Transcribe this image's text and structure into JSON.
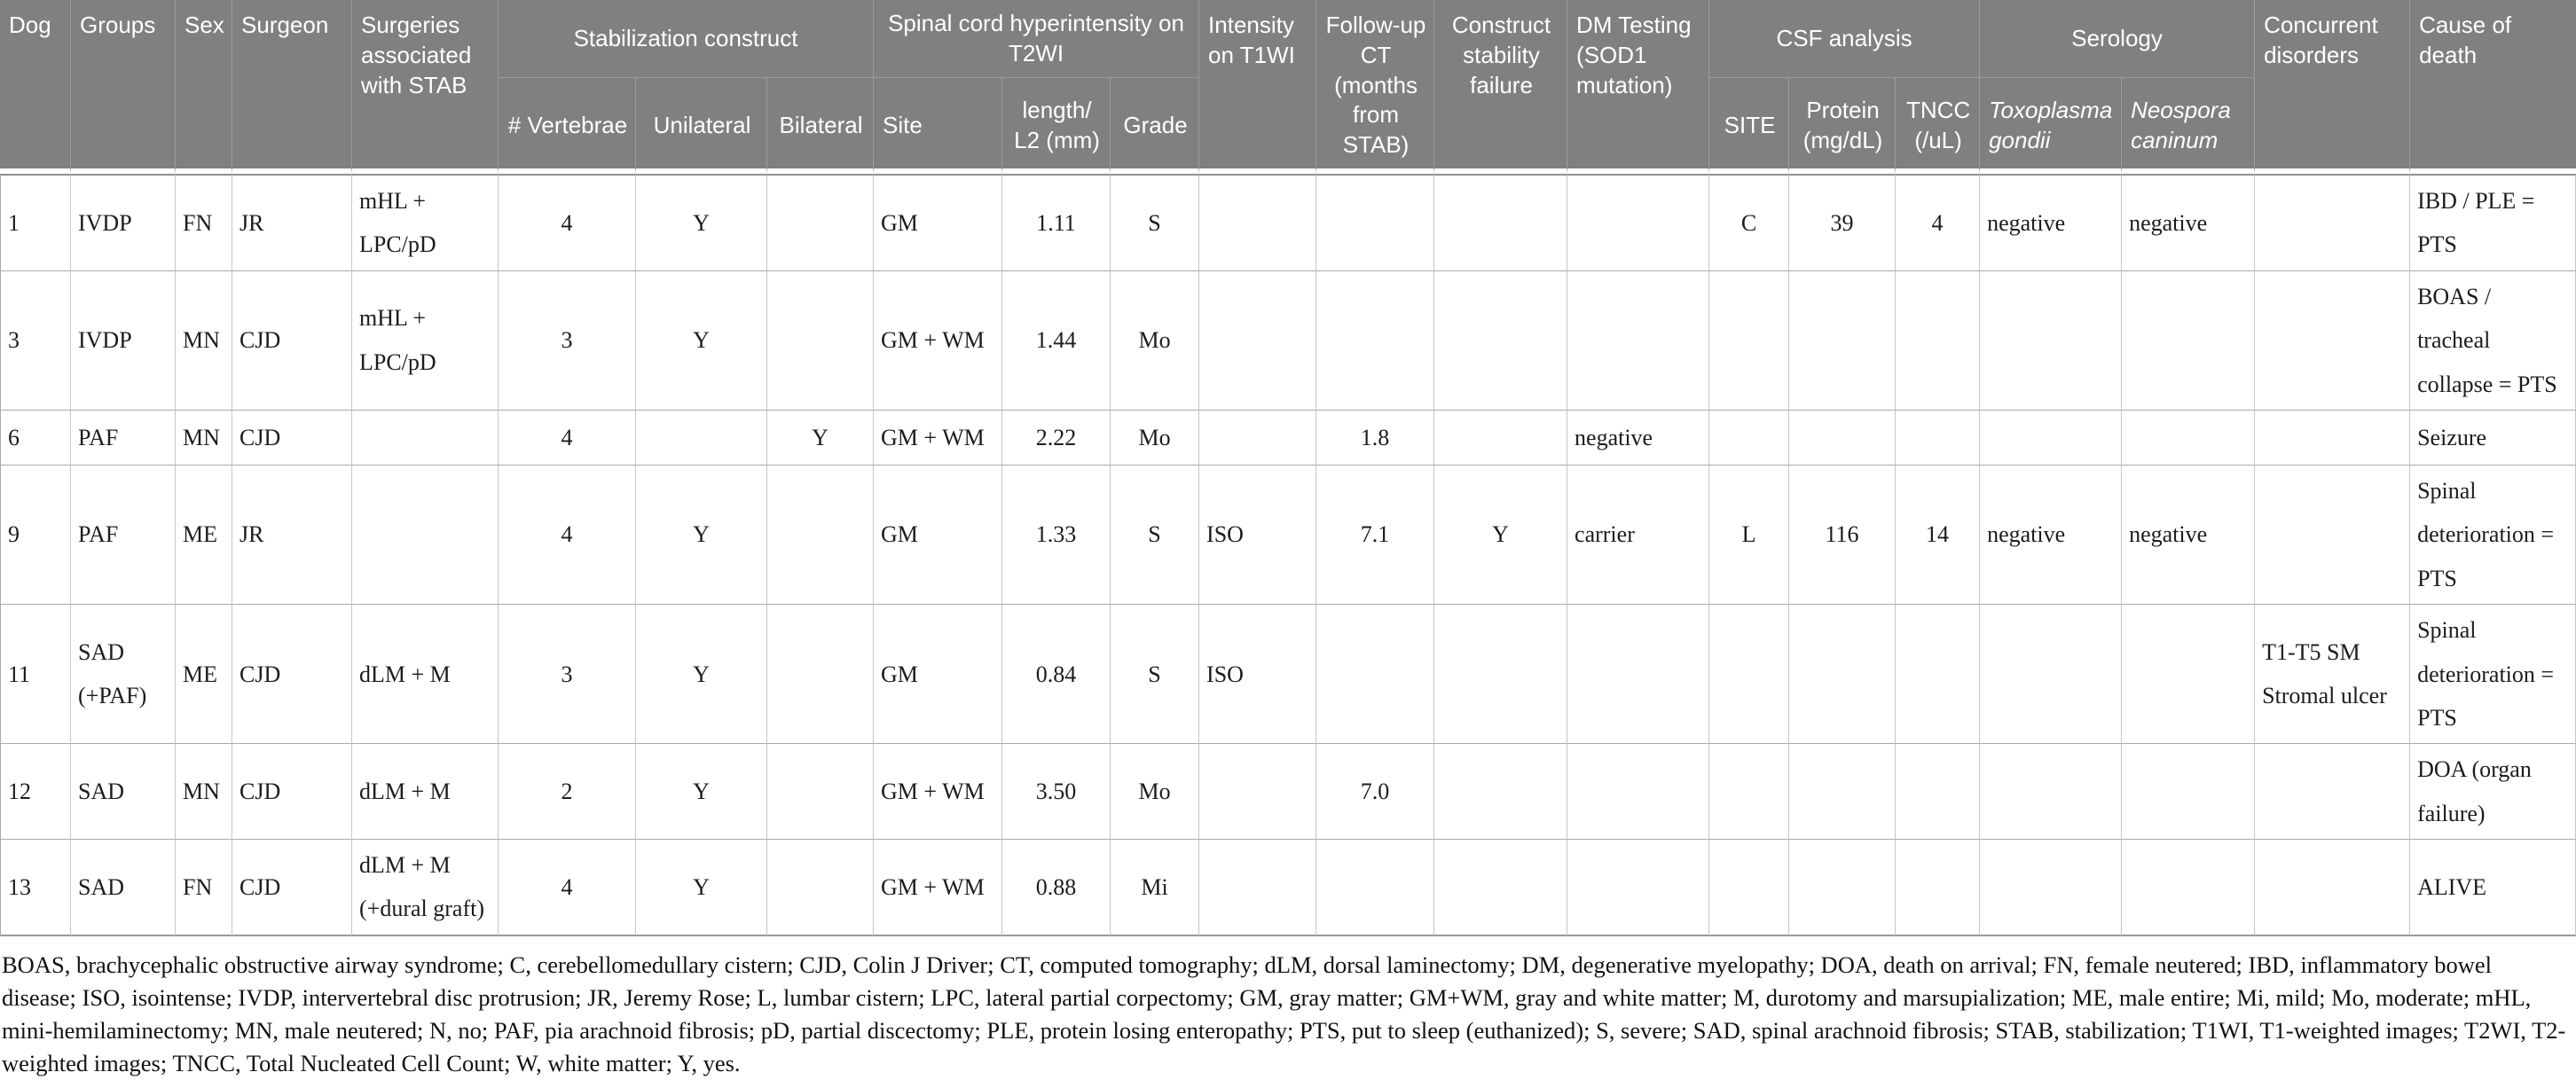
{
  "colors": {
    "header_bg": "#7f8080",
    "header_text": "#ffffff",
    "body_text": "#1c1c1c",
    "grid_line": "#ababab"
  },
  "header": {
    "tier1": {
      "dog": "Dog",
      "groups": "Groups",
      "sex": "Sex",
      "surgeon": "Surgeon",
      "surgeries": "Surgeries associated with STAB",
      "stabilization_construct": "Stabilization construct",
      "spinal_cord_hyperintensity": "Spinal cord hyperintensity on T2WI",
      "intensity_t1wi": "Intensity on T1WI",
      "followup_ct": "Follow-up CT (months from STAB)",
      "construct_stability_failure": "Construct stability failure",
      "dm_testing": "DM Testing (SOD1 mutation)",
      "csf_analysis": "CSF analysis",
      "serology": "Serology",
      "concurrent_disorders": "Concurrent disorders",
      "cause_of_death": "Cause of death"
    },
    "tier2": {
      "vertebrae": "# Vertebrae",
      "unilateral": "Unilateral",
      "bilateral": "Bilateral",
      "site": "Site",
      "length_l2": "length/\nL2 (mm)",
      "grade": "Grade",
      "csf_site": "SITE",
      "protein": "Protein (mg/dL)",
      "tncc": "TNCC (/uL)",
      "toxoplasma": "Toxoplasma gondii",
      "neospora": "Neospora caninum"
    }
  },
  "rows": [
    [
      "1",
      "IVDP",
      "FN",
      "JR",
      "mHL + LPC/pD",
      "4",
      "Y",
      "",
      "GM",
      "1.11",
      "S",
      "",
      "",
      "",
      "",
      "C",
      "39",
      "4",
      "negative",
      "negative",
      "",
      "IBD / PLE = PTS"
    ],
    [
      "3",
      "IVDP",
      "MN",
      "CJD",
      "mHL + LPC/pD",
      "3",
      "Y",
      "",
      "GM + WM",
      "1.44",
      "Mo",
      "",
      "",
      "",
      "",
      "",
      "",
      "",
      "",
      "",
      "",
      "BOAS / tracheal\ncollapse = PTS"
    ],
    [
      "6",
      "PAF",
      "MN",
      "CJD",
      "",
      "4",
      "",
      "Y",
      "GM + WM",
      "2.22",
      "Mo",
      "",
      "1.8",
      "",
      "negative",
      "",
      "",
      "",
      "",
      "",
      "",
      "Seizure"
    ],
    [
      "9",
      "PAF",
      "ME",
      "JR",
      "",
      "4",
      "Y",
      "",
      "GM",
      "1.33",
      "S",
      "ISO",
      "7.1",
      "Y",
      "carrier",
      "L",
      "116",
      "14",
      "negative",
      "negative",
      "",
      "Spinal\ndeterioration = PTS"
    ],
    [
      "11",
      "SAD\n(+PAF)",
      "ME",
      "CJD",
      "dLM + M",
      "3",
      "Y",
      "",
      "GM",
      "0.84",
      "S",
      "ISO",
      "",
      "",
      "",
      "",
      "",
      "",
      "",
      "",
      "T1-T5 SM\nStromal ulcer",
      "Spinal\ndeterioration = PTS"
    ],
    [
      "12",
      "SAD",
      "MN",
      "CJD",
      "dLM + M",
      "2",
      "Y",
      "",
      "GM + WM",
      "3.50",
      "Mo",
      "",
      "7.0",
      "",
      "",
      "",
      "",
      "",
      "",
      "",
      "",
      "DOA (organ\nfailure)"
    ],
    [
      "13",
      "SAD",
      "FN",
      "CJD",
      "dLM + M\n(+dural graft)",
      "4",
      "Y",
      "",
      "GM + WM",
      "0.88",
      "Mi",
      "",
      "",
      "",
      "",
      "",
      "",
      "",
      "",
      "",
      "",
      "ALIVE"
    ]
  ],
  "footnote": "BOAS, brachycephalic obstructive airway syndrome; C, cerebellomedullary cistern; CJD, Colin J Driver; CT, computed tomography; dLM, dorsal laminectomy; DM, degenerative myelopathy; DOA, death on arrival; FN, female neutered; IBD, inflammatory bowel disease; ISO, isointense; IVDP, intervertebral disc protrusion; JR, Jeremy Rose; L, lumbar cistern; LPC, lateral partial corpectomy; GM, gray matter; GM+WM, gray and white matter; M, durotomy and marsupialization; ME, male entire; Mi, mild; Mo, moderate; mHL, mini-hemilaminectomy; MN, male neutered; N, no; PAF, pia arachnoid fibrosis; pD, partial discectomy; PLE, protein losing enteropathy; PTS, put to sleep (euthanized); S, severe; SAD, spinal arachnoid fibrosis; STAB, stabilization; T1WI, T1-weighted images; T2WI, T2-weighted images; TNCC, Total Nucleated Cell Count; W, white matter; Y, yes."
}
